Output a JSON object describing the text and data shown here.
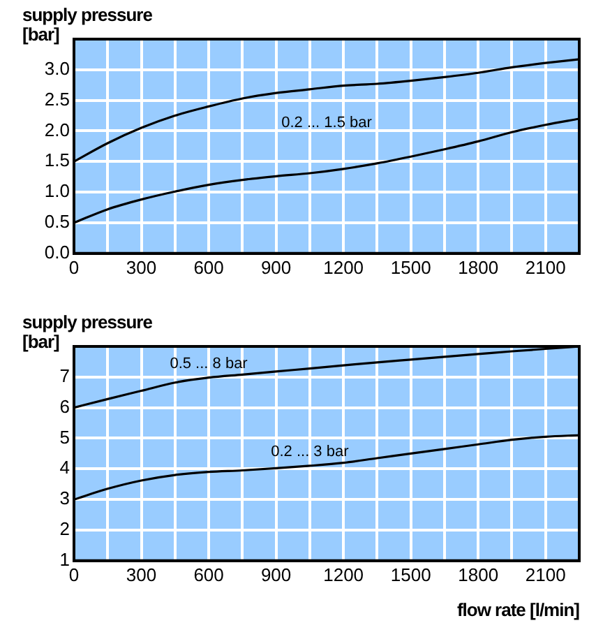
{
  "chart_data": [
    {
      "type": "line",
      "ylabel": "supply pressure [bar]",
      "x": [
        0,
        150,
        300,
        450,
        600,
        750,
        900,
        1050,
        1200,
        1350,
        1500,
        1650,
        1800,
        1950,
        2100,
        2250
      ],
      "series": [
        {
          "color": "#000000",
          "values": [
            1.5,
            1.8,
            2.05,
            2.25,
            2.4,
            2.53,
            2.62,
            2.68,
            2.74,
            2.77,
            2.82,
            2.88,
            2.95,
            3.04,
            3.11,
            3.17
          ]
        },
        {
          "color": "#000000",
          "values": [
            0.5,
            0.72,
            0.88,
            1.01,
            1.12,
            1.2,
            1.26,
            1.31,
            1.38,
            1.47,
            1.58,
            1.7,
            1.83,
            1.98,
            2.1,
            2.2
          ]
        }
      ],
      "xlim": [
        0,
        2250
      ],
      "xticks": [
        0,
        {
          "value": 150,
          "label": null
        },
        300,
        {
          "value": 450,
          "label": null
        },
        600,
        {
          "value": 750,
          "label": null
        },
        900,
        {
          "value": 1050,
          "label": null
        },
        1200,
        {
          "value": 1350,
          "label": null
        },
        1500,
        {
          "value": 1650,
          "label": null
        },
        1800,
        {
          "value": 1950,
          "label": null
        },
        2100
      ],
      "ylim": [
        0,
        3.5
      ],
      "yticks": [
        {
          "value": 0,
          "label": "0.0"
        },
        0.5,
        {
          "value": 1,
          "label": "1.0"
        },
        1.5,
        {
          "value": 2,
          "label": "2.0"
        },
        2.5,
        {
          "value": 3,
          "label": "3.0"
        }
      ],
      "annotations": [
        "0.2 ... 1.5 bar"
      ],
      "grid": true,
      "legend": false,
      "marker": "none",
      "line_style": "solid"
    },
    {
      "type": "line",
      "ylabel": "supply pressure [bar]",
      "xlabel": "flow rate [l/min]",
      "x": [
        0,
        150,
        300,
        450,
        600,
        750,
        900,
        1050,
        1200,
        1350,
        1500,
        1650,
        1800,
        1950,
        2100,
        2250
      ],
      "series": [
        {
          "name": "0.5 ... 8 bar",
          "color": "#000000",
          "values": [
            6.0,
            6.28,
            6.55,
            6.82,
            6.98,
            7.08,
            7.18,
            7.28,
            7.38,
            7.48,
            7.57,
            7.66,
            7.75,
            7.84,
            7.92,
            8.0
          ]
        },
        {
          "name": "0.2 ... 3 bar",
          "color": "#000000",
          "values": [
            3.0,
            3.35,
            3.62,
            3.8,
            3.9,
            3.95,
            4.02,
            4.1,
            4.2,
            4.35,
            4.5,
            4.65,
            4.8,
            4.95,
            5.05,
            5.1
          ]
        }
      ],
      "xlim": [
        0,
        2250
      ],
      "xticks": [
        0,
        {
          "value": 150,
          "label": null
        },
        300,
        {
          "value": 450,
          "label": null
        },
        600,
        {
          "value": 750,
          "label": null
        },
        900,
        {
          "value": 1050,
          "label": null
        },
        1200,
        {
          "value": 1350,
          "label": null
        },
        1500,
        {
          "value": 1650,
          "label": null
        },
        1800,
        {
          "value": 1950,
          "label": null
        },
        2100
      ],
      "ylim": [
        1,
        8
      ],
      "yticks": [
        1,
        2,
        3,
        4,
        5,
        6,
        7
      ],
      "grid": true,
      "legend": false,
      "marker": "none",
      "line_style": "solid"
    }
  ]
}
